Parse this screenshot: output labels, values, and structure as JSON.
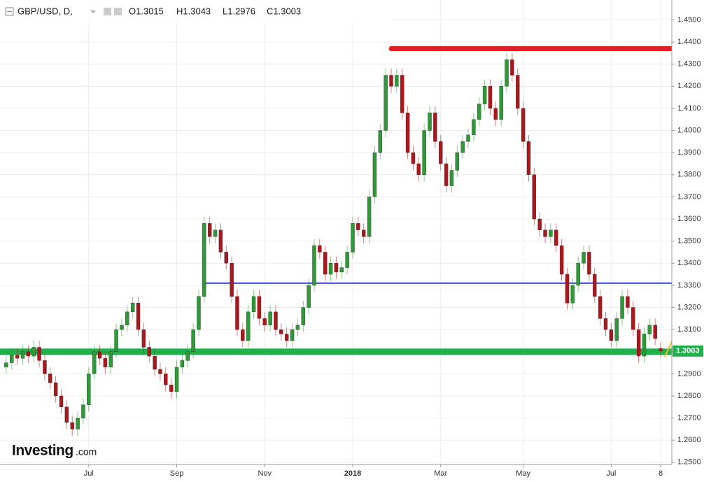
{
  "header": {
    "symbol": "GBP/USD, D,",
    "open": "O1.3015",
    "high": "H1.3043",
    "low": "L1.2976",
    "close": "C1.3003"
  },
  "logo": {
    "brand": "Investing",
    "suffix": ".com"
  },
  "chart_data": {
    "type": "candlestick",
    "categories": [
      null,
      null,
      null,
      null,
      null,
      null,
      null,
      null,
      null,
      null,
      null,
      null,
      null,
      null,
      null,
      "Jul",
      null,
      null,
      null,
      null,
      null,
      null,
      null,
      null,
      null,
      null,
      null,
      null,
      null,
      null,
      null,
      "Sep",
      null,
      null,
      null,
      null,
      null,
      null,
      null,
      null,
      null,
      null,
      null,
      null,
      null,
      null,
      null,
      "Nov",
      null,
      null,
      null,
      null,
      null,
      null,
      null,
      null,
      null,
      null,
      null,
      null,
      null,
      null,
      null,
      "2018",
      null,
      null,
      null,
      null,
      null,
      null,
      null,
      null,
      null,
      null,
      null,
      null,
      null,
      null,
      null,
      "Mar",
      null,
      null,
      null,
      null,
      null,
      null,
      null,
      null,
      null,
      null,
      null,
      null,
      null,
      null,
      "May",
      null,
      null,
      null,
      null,
      null,
      null,
      null,
      null,
      null,
      null,
      null,
      null,
      null,
      null,
      null,
      "Jul",
      null,
      null,
      null,
      null,
      null,
      null,
      null,
      null,
      "8"
    ],
    "open": [
      1.293,
      1.295,
      1.2985,
      1.297,
      1.3,
      1.298,
      1.302,
      1.296,
      1.29,
      1.286,
      1.28,
      1.275,
      1.268,
      1.265,
      1.27,
      1.276,
      1.29,
      1.3,
      1.297,
      1.293,
      1.3,
      1.31,
      1.312,
      1.318,
      1.322,
      1.31,
      1.302,
      1.298,
      1.292,
      1.29,
      1.285,
      1.282,
      1.293,
      1.296,
      1.3,
      1.31,
      1.325,
      1.358,
      1.352,
      1.355,
      1.345,
      1.34,
      1.325,
      1.31,
      1.305,
      1.318,
      1.325,
      1.315,
      1.312,
      1.318,
      1.31,
      1.308,
      1.305,
      1.31,
      1.312,
      1.32,
      1.33,
      1.348,
      1.345,
      1.335,
      1.34,
      1.336,
      1.338,
      1.345,
      1.358,
      1.355,
      1.352,
      1.37,
      1.39,
      1.4,
      1.425,
      1.42,
      1.425,
      1.408,
      1.39,
      1.385,
      1.38,
      1.4,
      1.408,
      1.395,
      1.385,
      1.375,
      1.382,
      1.39,
      1.395,
      1.398,
      1.405,
      1.412,
      1.42,
      1.41,
      1.405,
      1.42,
      1.432,
      1.425,
      1.41,
      1.395,
      1.38,
      1.36,
      1.355,
      1.352,
      1.355,
      1.348,
      1.335,
      1.322,
      1.33,
      1.34,
      1.345,
      1.335,
      1.325,
      1.315,
      1.31,
      1.305,
      1.315,
      1.325,
      1.32,
      1.31,
      1.298,
      1.308,
      1.312,
      1.3015
    ],
    "high": [
      1.298,
      1.3015,
      1.3015,
      1.303,
      1.303,
      1.305,
      1.305,
      1.299,
      1.293,
      1.289,
      1.283,
      1.278,
      1.271,
      1.273,
      1.279,
      1.293,
      1.303,
      1.303,
      1.3,
      1.303,
      1.313,
      1.315,
      1.321,
      1.325,
      1.325,
      1.313,
      1.305,
      1.301,
      1.295,
      1.293,
      1.288,
      1.296,
      1.299,
      1.303,
      1.313,
      1.328,
      1.361,
      1.361,
      1.358,
      1.358,
      1.348,
      1.343,
      1.328,
      1.313,
      1.321,
      1.328,
      1.328,
      1.318,
      1.321,
      1.321,
      1.313,
      1.311,
      1.313,
      1.315,
      1.323,
      1.333,
      1.351,
      1.351,
      1.348,
      1.343,
      1.343,
      1.341,
      1.348,
      1.361,
      1.361,
      1.358,
      1.373,
      1.393,
      1.403,
      1.428,
      1.428,
      1.428,
      1.428,
      1.411,
      1.393,
      1.388,
      1.403,
      1.411,
      1.411,
      1.398,
      1.388,
      1.385,
      1.393,
      1.398,
      1.401,
      1.408,
      1.415,
      1.423,
      1.423,
      1.413,
      1.423,
      1.435,
      1.435,
      1.428,
      1.413,
      1.398,
      1.383,
      1.363,
      1.358,
      1.358,
      1.358,
      1.351,
      1.338,
      1.333,
      1.343,
      1.348,
      1.348,
      1.338,
      1.328,
      1.318,
      1.313,
      1.318,
      1.328,
      1.328,
      1.323,
      1.313,
      1.311,
      1.315,
      1.315,
      1.3043
    ],
    "low": [
      1.29,
      1.292,
      1.294,
      1.294,
      1.295,
      1.295,
      1.293,
      1.287,
      1.283,
      1.277,
      1.272,
      1.265,
      1.262,
      1.262,
      1.267,
      1.273,
      1.287,
      1.294,
      1.29,
      1.29,
      1.297,
      1.307,
      1.309,
      1.315,
      1.307,
      1.299,
      1.295,
      1.289,
      1.287,
      1.282,
      1.279,
      1.279,
      1.29,
      1.293,
      1.297,
      1.307,
      1.322,
      1.349,
      1.349,
      1.342,
      1.337,
      1.322,
      1.307,
      1.302,
      1.302,
      1.315,
      1.312,
      1.309,
      1.309,
      1.307,
      1.305,
      1.302,
      1.302,
      1.307,
      1.309,
      1.317,
      1.327,
      1.342,
      1.332,
      1.332,
      1.333,
      1.333,
      1.335,
      1.342,
      1.352,
      1.349,
      1.349,
      1.367,
      1.387,
      1.397,
      1.417,
      1.417,
      1.405,
      1.387,
      1.382,
      1.377,
      1.377,
      1.397,
      1.392,
      1.382,
      1.372,
      1.372,
      1.379,
      1.387,
      1.392,
      1.395,
      1.402,
      1.409,
      1.407,
      1.402,
      1.402,
      1.417,
      1.422,
      1.407,
      1.392,
      1.377,
      1.357,
      1.352,
      1.349,
      1.349,
      1.345,
      1.332,
      1.319,
      1.319,
      1.327,
      1.337,
      1.332,
      1.322,
      1.312,
      1.307,
      1.302,
      1.302,
      1.312,
      1.317,
      1.307,
      1.295,
      1.295,
      1.305,
      1.303,
      1.2976
    ],
    "close": [
      1.295,
      1.2985,
      1.297,
      1.3,
      1.298,
      1.302,
      1.296,
      1.29,
      1.286,
      1.28,
      1.275,
      1.268,
      1.265,
      1.27,
      1.276,
      1.29,
      1.3,
      1.297,
      1.293,
      1.3,
      1.31,
      1.312,
      1.318,
      1.322,
      1.31,
      1.302,
      1.298,
      1.292,
      1.29,
      1.285,
      1.282,
      1.293,
      1.296,
      1.3,
      1.31,
      1.325,
      1.358,
      1.352,
      1.355,
      1.345,
      1.34,
      1.325,
      1.31,
      1.305,
      1.318,
      1.325,
      1.315,
      1.312,
      1.318,
      1.31,
      1.308,
      1.305,
      1.31,
      1.312,
      1.32,
      1.33,
      1.348,
      1.345,
      1.335,
      1.34,
      1.336,
      1.338,
      1.345,
      1.358,
      1.355,
      1.352,
      1.37,
      1.39,
      1.4,
      1.425,
      1.42,
      1.425,
      1.408,
      1.39,
      1.385,
      1.38,
      1.4,
      1.408,
      1.395,
      1.385,
      1.375,
      1.382,
      1.39,
      1.395,
      1.398,
      1.405,
      1.412,
      1.42,
      1.41,
      1.405,
      1.42,
      1.432,
      1.425,
      1.41,
      1.395,
      1.38,
      1.36,
      1.355,
      1.352,
      1.355,
      1.348,
      1.335,
      1.322,
      1.33,
      1.34,
      1.345,
      1.335,
      1.325,
      1.315,
      1.31,
      1.305,
      1.315,
      1.325,
      1.32,
      1.31,
      1.298,
      1.308,
      1.312,
      1.306,
      1.3003
    ],
    "up_color": "#2e9a35",
    "down_color": "#b0151b",
    "ylim": [
      1.249,
      1.459
    ],
    "yticks": [
      {
        "value": 1.25,
        "label": "1.2500"
      },
      {
        "value": 1.26,
        "label": "1.2600"
      },
      {
        "value": 1.27,
        "label": "1.2700"
      },
      {
        "value": 1.28,
        "label": "1.2800"
      },
      {
        "value": 1.29,
        "label": "1.2900"
      },
      {
        "value": 1.3,
        "label": "1.3000"
      },
      {
        "value": 1.31,
        "label": "1.3100"
      },
      {
        "value": 1.32,
        "label": "1.3200"
      },
      {
        "value": 1.33,
        "label": "1.3300"
      },
      {
        "value": 1.34,
        "label": "1.3400"
      },
      {
        "value": 1.35,
        "label": "1.3500"
      },
      {
        "value": 1.36,
        "label": "1.3600"
      },
      {
        "value": 1.37,
        "label": "1.3700"
      },
      {
        "value": 1.38,
        "label": "1.3800"
      },
      {
        "value": 1.39,
        "label": "1.3900"
      },
      {
        "value": 1.4,
        "label": "1.4000"
      },
      {
        "value": 1.41,
        "label": "1.4100"
      },
      {
        "value": 1.42,
        "label": "1.4200"
      },
      {
        "value": 1.43,
        "label": "1.4300"
      },
      {
        "value": 1.44,
        "label": "1.4400"
      },
      {
        "value": 1.45,
        "label": "1.4500"
      }
    ],
    "grid": true,
    "levels": [
      {
        "value": 1.437,
        "color": "#e0202a"
      },
      {
        "value": 1.331,
        "color": "#2e3fcc"
      },
      {
        "value": 1.3,
        "color": "#21b04b"
      }
    ]
  }
}
